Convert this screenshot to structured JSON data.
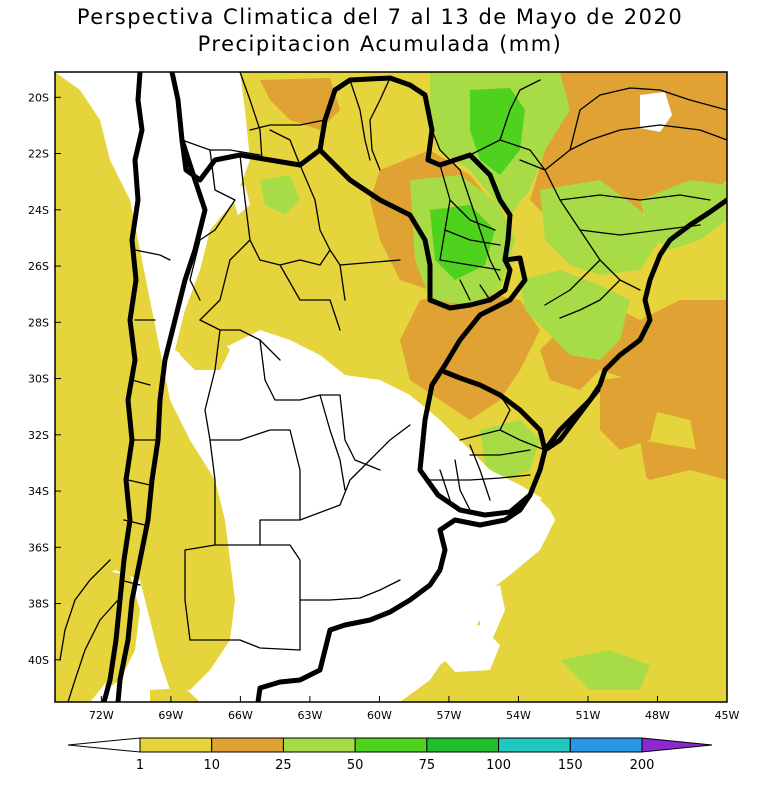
{
  "title": {
    "line1": "Perspectiva Climatica del 7 al 13 de Mayo de 2020",
    "line2": "Precipitacion Acumulada (mm)"
  },
  "axes": {
    "lat_ticks": [
      "20S",
      "22S",
      "24S",
      "26S",
      "28S",
      "30S",
      "32S",
      "34S",
      "36S",
      "38S",
      "40S"
    ],
    "lat_values": [
      -20,
      -22,
      -24,
      -26,
      -28,
      -30,
      -32,
      -34,
      -36,
      -38,
      -40
    ],
    "lon_ticks": [
      "72W",
      "69W",
      "66W",
      "63W",
      "60W",
      "57W",
      "54W",
      "51W",
      "48W",
      "45W"
    ],
    "lon_values": [
      -72,
      -69,
      -66,
      -63,
      -60,
      -57,
      -54,
      -51,
      -48,
      -45
    ],
    "lat_range": [
      -41.5,
      -19.1
    ],
    "lon_range": [
      -74.0,
      -45.0
    ]
  },
  "colorbar": {
    "labels": [
      "1",
      "10",
      "25",
      "50",
      "75",
      "100",
      "150",
      "200"
    ],
    "colors": [
      "#ffffff",
      "#e6d43c",
      "#e0a232",
      "#a8dc46",
      "#4fd21e",
      "#1ebe2d",
      "#20c8c0",
      "#2a96e6",
      "#2632c8",
      "#8a28d2"
    ]
  },
  "colors": {
    "none": "#ffffff",
    "c1_10": "#e6d43c",
    "c10_25": "#e0a232",
    "c25_50": "#a8dc46",
    "c50_75": "#4fd21e",
    "c75_100": "#1ebe2d",
    "c100_150": "#20c8c0",
    "c150_200": "#2a96e6",
    "border": "#000000"
  }
}
